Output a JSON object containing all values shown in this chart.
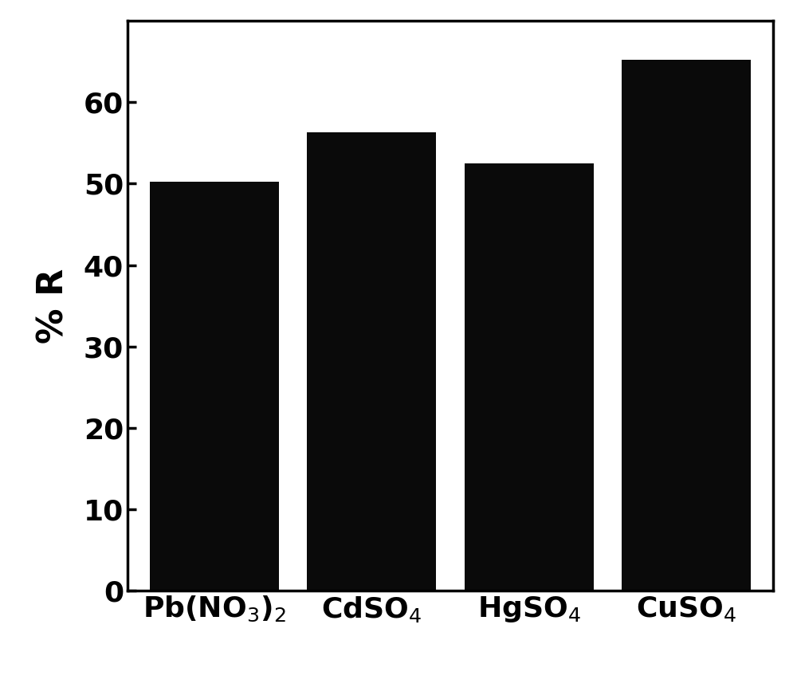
{
  "categories": [
    "Pb(NO$_3$)$_2$",
    "CdSO$_4$",
    "HgSO$_4$",
    "CuSO$_4$"
  ],
  "values": [
    50.2,
    56.3,
    52.5,
    65.2
  ],
  "bar_color": "#0a0a0a",
  "ylabel": "% R",
  "ylim": [
    0,
    70
  ],
  "yticks": [
    0,
    10,
    20,
    30,
    40,
    50,
    60
  ],
  "bar_width": 0.82,
  "tick_fontsize": 26,
  "label_fontsize": 32,
  "background_color": "#ffffff",
  "edge_color": "#0a0a0a",
  "spine_linewidth": 2.5
}
